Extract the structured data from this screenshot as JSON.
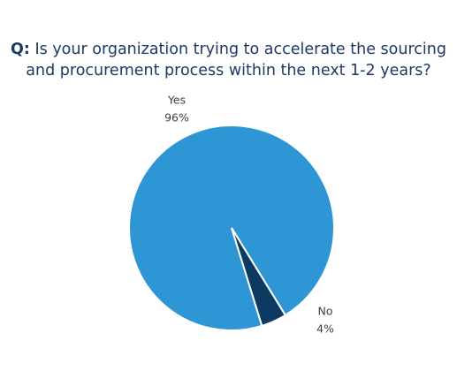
{
  "chart_data": {
    "type": "pie",
    "title_label": "Q:",
    "title": "Is your organization trying to accelerate the sourcing and procurement process within the next 1-2 years?",
    "categories": [
      "Yes",
      "No"
    ],
    "values": [
      96,
      4
    ],
    "value_labels": [
      "96%",
      "4%"
    ],
    "colors": [
      "#2e96d4",
      "#0d3a63"
    ]
  }
}
